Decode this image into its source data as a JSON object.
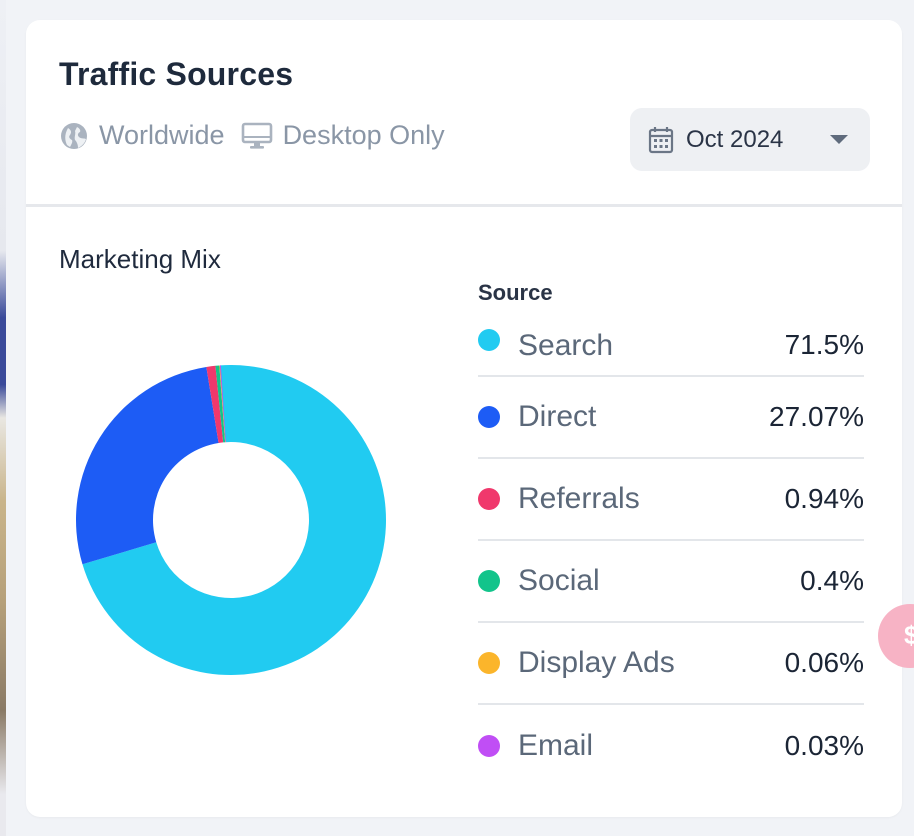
{
  "header": {
    "title": "Traffic Sources",
    "location": "Worldwide",
    "device": "Desktop Only",
    "date_selector": {
      "value": "Oct 2024"
    }
  },
  "section": {
    "title": "Marketing Mix"
  },
  "legend": {
    "heading": "Source"
  },
  "chart_data": {
    "type": "pie",
    "labels": [
      "Search",
      "Direct",
      "Referrals",
      "Social",
      "Display Ads",
      "Email"
    ],
    "values": [
      71.5,
      27.07,
      0.94,
      0.4,
      0.06,
      0.03
    ],
    "value_labels": [
      "71.5%",
      "27.07%",
      "0.94%",
      "0.4%",
      "0.06%",
      "0.03%"
    ],
    "colors": [
      "#21cbf1",
      "#1d5cf5",
      "#f0386c",
      "#12c48b",
      "#fbb52b",
      "#c04ef5"
    ],
    "title": "Marketing Mix",
    "legend_title": "Source",
    "legend_placement": "right",
    "donut": true
  },
  "colors": {
    "accent": "#21cbf1",
    "muted_text": "#8a96a6",
    "title_text": "#1e2a3c"
  },
  "icons": {
    "location": "globe-icon",
    "device": "monitor-icon",
    "date": "calendar-icon",
    "dropdown": "chevron-down-icon"
  }
}
